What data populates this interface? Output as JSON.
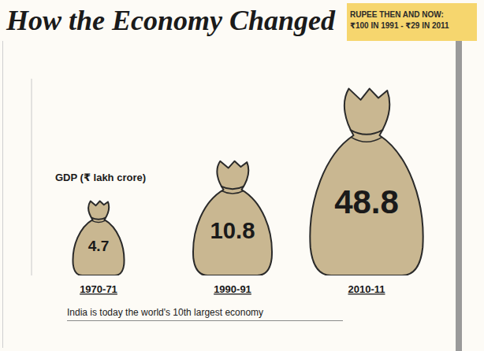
{
  "chart_data": {
    "type": "bar",
    "title": "How the Economy Changed",
    "callout": [
      "RUPEE THEN AND NOW:",
      "₹100 IN 1991 - ₹29 IN 2011"
    ],
    "ylabel": "GDP (₹ lakh crore)",
    "footnote": "India is today the world's 10th largest economy",
    "categories": [
      "1970-71",
      "1990-91",
      "2010-11"
    ],
    "values": [
      4.7,
      10.8,
      48.8
    ],
    "color": "#c9b791",
    "log": "y",
    "ylim": [
      1,
      60
    ],
    "grid": false,
    "data_labels": true,
    "tick_labels": "x"
  }
}
